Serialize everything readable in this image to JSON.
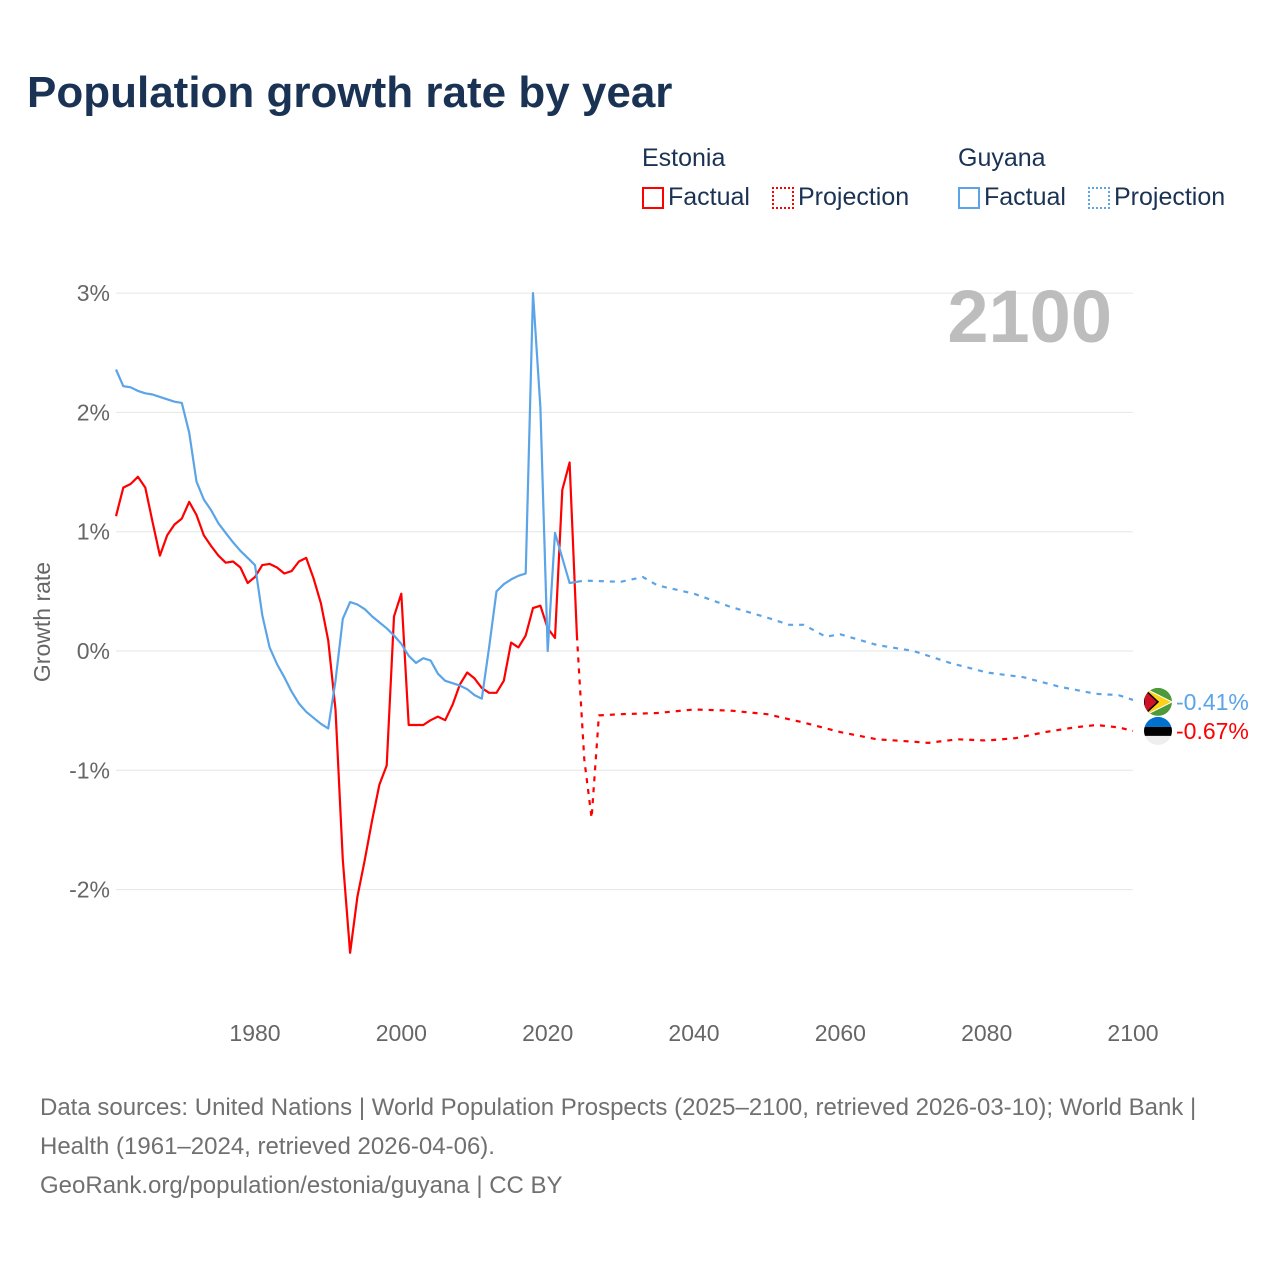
{
  "title": "Population growth rate by year",
  "legend": {
    "groups": [
      {
        "name": "Estonia",
        "factual": "Factual",
        "projection": "Projection",
        "color": "#ff0000"
      },
      {
        "name": "Guyana",
        "factual": "Factual",
        "projection": "Projection",
        "color": "#5ba4e8"
      }
    ]
  },
  "footer": {
    "sources": "Data sources: United Nations | World Population Prospects (2025–2100, retrieved 2026-03-10); World Bank | Health (1961–2024, retrieved 2026-04-06).",
    "link": "GeoRank.org/population/estonia/guyana | CC BY"
  },
  "chart_data": {
    "type": "line",
    "title": "Population growth rate by year",
    "ylabel": "Growth rate",
    "xlabel": "",
    "year_label": "2100",
    "ylim": [
      -3,
      3
    ],
    "xlim": [
      1961,
      2100
    ],
    "yticks": [
      {
        "v": 3,
        "label": "3%"
      },
      {
        "v": 2,
        "label": "2%"
      },
      {
        "v": 1,
        "label": "1%"
      },
      {
        "v": 0,
        "label": "0%"
      },
      {
        "v": -1,
        "label": "-1%"
      },
      {
        "v": -2,
        "label": "-2%"
      }
    ],
    "xticks": [
      {
        "v": 1980,
        "label": "1980"
      },
      {
        "v": 2000,
        "label": "2000"
      },
      {
        "v": 2020,
        "label": "2020"
      },
      {
        "v": 2040,
        "label": "2040"
      },
      {
        "v": 2060,
        "label": "2060"
      },
      {
        "v": 2080,
        "label": "2080"
      },
      {
        "v": 2100,
        "label": "2100"
      }
    ],
    "grid": true,
    "series": [
      {
        "name": "Estonia Factual",
        "color": "#ff0000",
        "dashed": false,
        "x": [
          1961,
          1962,
          1963,
          1964,
          1965,
          1966,
          1967,
          1968,
          1969,
          1970,
          1971,
          1972,
          1973,
          1974,
          1975,
          1976,
          1977,
          1978,
          1979,
          1980,
          1981,
          1982,
          1983,
          1984,
          1985,
          1986,
          1987,
          1988,
          1989,
          1990,
          1991,
          1992,
          1993,
          1994,
          1995,
          1996,
          1997,
          1998,
          1999,
          2000,
          2001,
          2002,
          2003,
          2004,
          2005,
          2006,
          2007,
          2008,
          2009,
          2010,
          2011,
          2012,
          2013,
          2014,
          2015,
          2016,
          2017,
          2018,
          2019,
          2020,
          2021,
          2022,
          2023,
          2024
        ],
        "y": [
          1.13,
          1.37,
          1.4,
          1.46,
          1.37,
          1.08,
          0.8,
          0.97,
          1.06,
          1.11,
          1.25,
          1.14,
          0.97,
          0.88,
          0.8,
          0.74,
          0.75,
          0.7,
          0.57,
          0.62,
          0.72,
          0.73,
          0.7,
          0.65,
          0.67,
          0.75,
          0.78,
          0.61,
          0.4,
          0.09,
          -0.49,
          -1.75,
          -2.53,
          -2.06,
          -1.75,
          -1.42,
          -1.12,
          -0.96,
          0.29,
          0.48,
          -0.62,
          -0.62,
          -0.62,
          -0.58,
          -0.55,
          -0.58,
          -0.45,
          -0.28,
          -0.18,
          -0.23,
          -0.31,
          -0.35,
          -0.35,
          -0.25,
          0.07,
          0.03,
          0.13,
          0.36,
          0.38,
          0.19,
          0.11,
          1.35,
          1.58,
          0.13
        ]
      },
      {
        "name": "Estonia Projection",
        "color": "#ff0000",
        "dashed": true,
        "x": [
          2024,
          2025,
          2026,
          2027,
          2030,
          2035,
          2040,
          2045,
          2050,
          2055,
          2060,
          2065,
          2070,
          2072,
          2076,
          2080,
          2084,
          2088,
          2092,
          2095,
          2098,
          2100
        ],
        "y": [
          0.13,
          -0.91,
          -1.4,
          -0.54,
          -0.53,
          -0.52,
          -0.49,
          -0.5,
          -0.53,
          -0.6,
          -0.68,
          -0.74,
          -0.76,
          -0.77,
          -0.74,
          -0.75,
          -0.73,
          -0.68,
          -0.64,
          -0.62,
          -0.64,
          -0.67
        ]
      },
      {
        "name": "Guyana Factual",
        "color": "#5ba4e8",
        "dashed": false,
        "x": [
          1961,
          1962,
          1963,
          1964,
          1965,
          1966,
          1967,
          1968,
          1969,
          1970,
          1971,
          1972,
          1973,
          1974,
          1975,
          1976,
          1977,
          1978,
          1979,
          1980,
          1981,
          1982,
          1983,
          1984,
          1985,
          1986,
          1987,
          1988,
          1989,
          1990,
          1991,
          1992,
          1993,
          1994,
          1995,
          1996,
          1997,
          1998,
          1999,
          2000,
          2001,
          2002,
          2003,
          2004,
          2005,
          2006,
          2007,
          2008,
          2009,
          2010,
          2011,
          2012,
          2013,
          2014,
          2015,
          2016,
          2017,
          2018,
          2019,
          2020,
          2021,
          2022,
          2023,
          2024
        ],
        "y": [
          2.36,
          2.22,
          2.21,
          2.18,
          2.16,
          2.15,
          2.13,
          2.11,
          2.09,
          2.08,
          1.83,
          1.42,
          1.27,
          1.18,
          1.07,
          0.99,
          0.91,
          0.84,
          0.78,
          0.72,
          0.3,
          0.03,
          -0.11,
          -0.22,
          -0.34,
          -0.44,
          -0.51,
          -0.56,
          -0.61,
          -0.65,
          -0.25,
          0.27,
          0.41,
          0.39,
          0.35,
          0.29,
          0.24,
          0.19,
          0.13,
          0.06,
          -0.04,
          -0.1,
          -0.06,
          -0.08,
          -0.19,
          -0.25,
          -0.27,
          -0.29,
          -0.32,
          -0.37,
          -0.4,
          0.03,
          0.5,
          0.56,
          0.6,
          0.63,
          0.65,
          3.0,
          2.04,
          0.0,
          0.99,
          0.78,
          0.57,
          0.58
        ]
      },
      {
        "name": "Guyana Projection",
        "color": "#5ba4e8",
        "dashed": true,
        "x": [
          2024,
          2025,
          2030,
          2033,
          2035,
          2040,
          2045,
          2050,
          2053,
          2055,
          2058,
          2060,
          2065,
          2070,
          2075,
          2080,
          2085,
          2090,
          2095,
          2098,
          2100
        ],
        "y": [
          0.58,
          0.59,
          0.58,
          0.62,
          0.55,
          0.48,
          0.37,
          0.28,
          0.22,
          0.22,
          0.12,
          0.14,
          0.05,
          0.0,
          -0.1,
          -0.18,
          -0.22,
          -0.3,
          -0.36,
          -0.37,
          -0.41
        ]
      }
    ],
    "end_labels": [
      {
        "country": "Guyana",
        "value": -0.41,
        "label": "-0.41%",
        "color": "#5ba4e8"
      },
      {
        "country": "Estonia",
        "value": -0.67,
        "label": "-0.67%",
        "color": "#ff0000"
      }
    ]
  }
}
